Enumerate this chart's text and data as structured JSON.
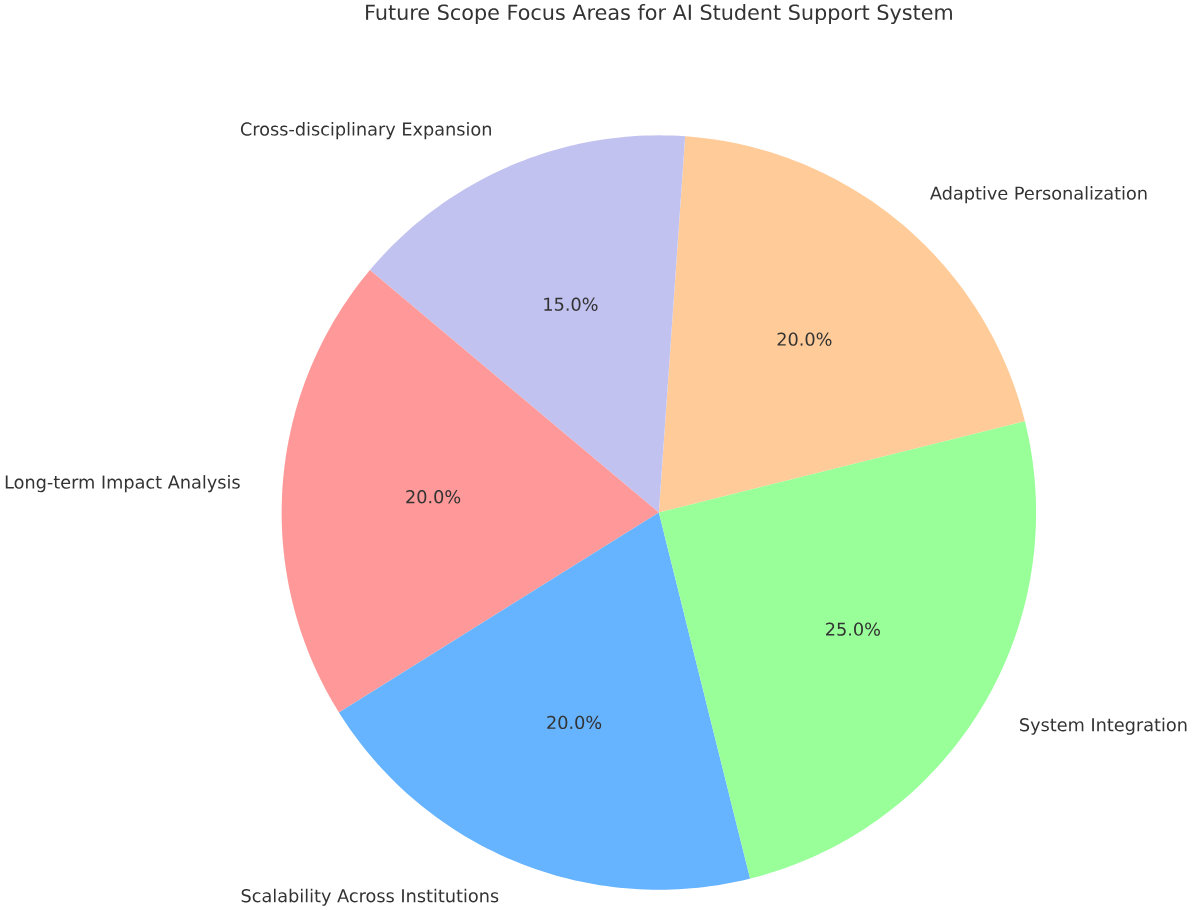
{
  "chart_data": {
    "type": "pie",
    "title": "Future Scope Focus Areas for AI Student Support System",
    "categories": [
      "Adaptive Personalization",
      "Cross-disciplinary Expansion",
      "Long-term Impact Analysis",
      "Scalability Across Institutions",
      "System Integration"
    ],
    "values": [
      20,
      15,
      20,
      20,
      25
    ],
    "value_labels": [
      "20.0%",
      "15.0%",
      "20.0%",
      "20.0%",
      "25.0%"
    ],
    "colors": [
      "#ffcc99",
      "#c2c2f0",
      "#ff9999",
      "#66b3ff",
      "#99ff99"
    ]
  }
}
